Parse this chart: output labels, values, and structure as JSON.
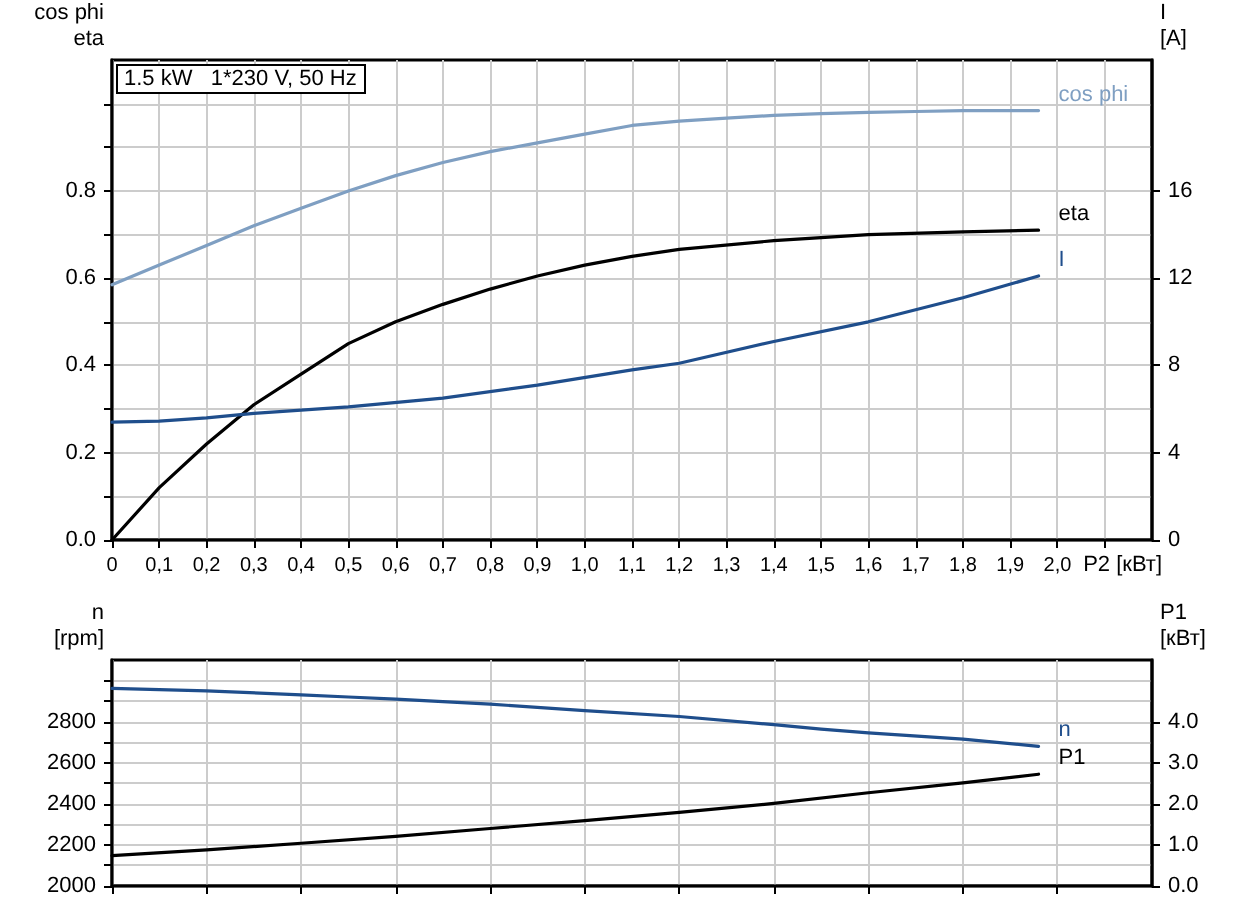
{
  "chart_data": [
    {
      "type": "line",
      "title": "1.5 kW   1*230 V, 50 Hz",
      "xlabel": "P2 [кВт]",
      "ylabel": "cos phi\neta",
      "y2label": "I\n[A]",
      "grid": true,
      "marker": "none",
      "line_style": "solid",
      "xlim": [
        0,
        2.2
      ],
      "xticks": [
        0,
        {
          "value": 0.1,
          "label": "0,1"
        },
        {
          "value": 0.2,
          "label": "0,2"
        },
        {
          "value": 0.3,
          "label": "0,3"
        },
        {
          "value": 0.4,
          "label": "0,4"
        },
        {
          "value": 0.5,
          "label": "0,5"
        },
        {
          "value": 0.6,
          "label": "0,6"
        },
        {
          "value": 0.7,
          "label": "0,7"
        },
        {
          "value": 0.8,
          "label": "0,8"
        },
        {
          "value": 0.9,
          "label": "0,9"
        },
        {
          "value": 1.0,
          "label": "1,0"
        },
        {
          "value": 1.1,
          "label": "1,1"
        },
        {
          "value": 1.2,
          "label": "1,2"
        },
        {
          "value": 1.3,
          "label": "1,3"
        },
        {
          "value": 1.4,
          "label": "1,4"
        },
        {
          "value": 1.5,
          "label": "1,5"
        },
        {
          "value": 1.6,
          "label": "1,6"
        },
        {
          "value": 1.7,
          "label": "1,7"
        },
        {
          "value": 1.8,
          "label": "1,8"
        },
        {
          "value": 1.9,
          "label": "1,9"
        },
        {
          "value": 2.0,
          "label": "2,0"
        },
        {
          "value": 2.1,
          "label": null
        }
      ],
      "ylim": [
        0,
        1.1
      ],
      "yticks": [
        {
          "value": 0,
          "label": "0.0"
        },
        {
          "value": 0.1,
          "label": null
        },
        {
          "value": 0.2,
          "label": "0.2"
        },
        {
          "value": 0.3,
          "label": null
        },
        {
          "value": 0.4,
          "label": "0.4"
        },
        {
          "value": 0.5,
          "label": null
        },
        {
          "value": 0.6,
          "label": "0.6"
        },
        {
          "value": 0.7,
          "label": null
        },
        {
          "value": 0.8,
          "label": "0.8"
        },
        {
          "value": 0.9,
          "label": null
        },
        {
          "value": 1.0,
          "label": null
        }
      ],
      "y2lim": [
        0,
        22
      ],
      "y2ticks": [
        0,
        4,
        8,
        12,
        16
      ],
      "series": [
        {
          "name": "cos phi",
          "color": "#7f9fc2",
          "x": [
            0,
            0.1,
            0.2,
            0.3,
            0.4,
            0.5,
            0.6,
            0.7,
            0.8,
            0.9,
            1.0,
            1.1,
            1.2,
            1.3,
            1.4,
            1.5,
            1.6,
            1.7,
            1.8,
            1.9,
            1.96
          ],
          "values": [
            0.585,
            0.63,
            0.675,
            0.72,
            0.76,
            0.8,
            0.835,
            0.865,
            0.89,
            0.91,
            0.93,
            0.95,
            0.96,
            0.967,
            0.973,
            0.977,
            0.98,
            0.982,
            0.984,
            0.984,
            0.984
          ]
        },
        {
          "name": "eta",
          "color": "#000000",
          "x": [
            0,
            0.1,
            0.2,
            0.3,
            0.4,
            0.5,
            0.6,
            0.7,
            0.8,
            0.9,
            1.0,
            1.1,
            1.2,
            1.4,
            1.6,
            1.8,
            1.96
          ],
          "values": [
            0,
            0.12,
            0.22,
            0.31,
            0.38,
            0.45,
            0.5,
            0.54,
            0.575,
            0.605,
            0.63,
            0.65,
            0.666,
            0.686,
            0.7,
            0.706,
            0.71
          ]
        },
        {
          "name": "I",
          "color": "#1f4e8c",
          "axis": "y2",
          "x": [
            0,
            0.1,
            0.2,
            0.3,
            0.5,
            0.7,
            0.9,
            1.1,
            1.2,
            1.4,
            1.6,
            1.8,
            1.96
          ],
          "values": [
            5.4,
            5.45,
            5.6,
            5.8,
            6.1,
            6.5,
            7.1,
            7.8,
            8.1,
            9.1,
            10.0,
            11.1,
            12.1
          ]
        }
      ]
    },
    {
      "type": "line",
      "ylabel": "n\n[rpm]",
      "y2label": "P1\n[кВт]",
      "grid": true,
      "marker": "none",
      "line_style": "solid",
      "tick_labels": "y",
      "xlim": [
        0,
        2.2
      ],
      "xticks": [
        {
          "value": 0,
          "label": null
        },
        {
          "value": 0.2,
          "label": null
        },
        {
          "value": 0.4,
          "label": null
        },
        {
          "value": 0.6,
          "label": null
        },
        {
          "value": 0.8,
          "label": null
        },
        {
          "value": 1.0,
          "label": null
        },
        {
          "value": 1.2,
          "label": null
        },
        {
          "value": 1.4,
          "label": null
        },
        {
          "value": 1.6,
          "label": null
        },
        {
          "value": 1.8,
          "label": null
        },
        {
          "value": 2.0,
          "label": null
        }
      ],
      "ylim": [
        2000,
        3100
      ],
      "yticks": [
        2000,
        {
          "value": 2100,
          "label": null
        },
        2200,
        {
          "value": 2300,
          "label": null
        },
        2400,
        {
          "value": 2500,
          "label": null
        },
        2600,
        {
          "value": 2700,
          "label": null
        },
        2800,
        {
          "value": 2900,
          "label": null
        },
        {
          "value": 3000,
          "label": null
        }
      ],
      "y2lim": [
        0,
        5.5
      ],
      "y2ticks": [
        {
          "value": 0,
          "label": "0.0"
        },
        {
          "value": 1,
          "label": "1.0"
        },
        {
          "value": 2,
          "label": "2.0"
        },
        {
          "value": 3,
          "label": "3.0"
        },
        {
          "value": 4,
          "label": "4.0"
        }
      ],
      "series": [
        {
          "name": "n",
          "color": "#1f4e8c",
          "x": [
            0,
            0.2,
            0.4,
            0.5,
            0.6,
            0.8,
            1.0,
            1.2,
            1.4,
            1.5,
            1.6,
            1.8,
            1.96
          ],
          "values": [
            2962,
            2950,
            2930,
            2920,
            2910,
            2885,
            2854,
            2825,
            2785,
            2764,
            2745,
            2715,
            2680
          ]
        },
        {
          "name": "P1",
          "color": "#000000",
          "axis": "y2",
          "x": [
            0,
            0.2,
            0.4,
            0.6,
            0.8,
            1.0,
            1.2,
            1.4,
            1.6,
            1.8,
            1.96
          ],
          "values": [
            0.74,
            0.88,
            1.04,
            1.21,
            1.4,
            1.59,
            1.79,
            2.01,
            2.27,
            2.51,
            2.72
          ]
        }
      ]
    }
  ]
}
